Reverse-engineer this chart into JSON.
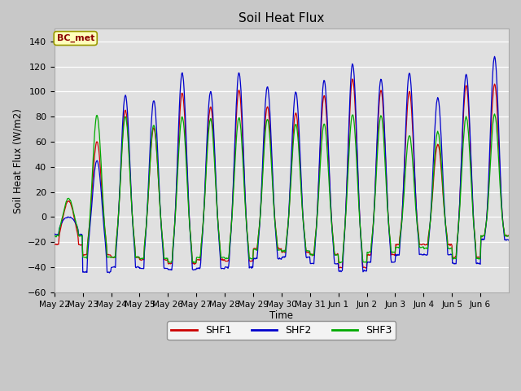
{
  "title": "Soil Heat Flux",
  "ylabel": "Soil Heat Flux (W/m2)",
  "xlabel": "Time",
  "ylim": [
    -60,
    150
  ],
  "yticks": [
    -60,
    -40,
    -20,
    0,
    20,
    40,
    60,
    80,
    100,
    120,
    140
  ],
  "x_labels": [
    "May 22",
    "May 23",
    "May 24",
    "May 25",
    "May 26",
    "May 27",
    "May 28",
    "May 29",
    "May 30",
    "May 31",
    "Jun 1",
    "Jun 2",
    "Jun 3",
    "Jun 4",
    "Jun 5",
    "Jun 6"
  ],
  "colors": {
    "SHF1": "#cc0000",
    "SHF2": "#0000cc",
    "SHF3": "#00aa00"
  },
  "annotation": "BC_met",
  "fig_bg": "#c8c8c8",
  "plot_bg": "#e0e0e0",
  "n_days": 16,
  "peaks_shf2": [
    0,
    45,
    97,
    93,
    115,
    100,
    115,
    104,
    100,
    109,
    122,
    110,
    115,
    95,
    114,
    128
  ],
  "peaks_shf1": [
    13,
    60,
    85,
    71,
    99,
    88,
    101,
    88,
    83,
    97,
    110,
    101,
    100,
    58,
    105,
    106
  ],
  "peaks_shf3": [
    15,
    81,
    80,
    73,
    80,
    78,
    79,
    78,
    74,
    74,
    82,
    81,
    65,
    68,
    80,
    82
  ],
  "nights_shf1": [
    -22,
    -30,
    -32,
    -34,
    -37,
    -34,
    -35,
    -25,
    -28,
    -30,
    -40,
    -30,
    -22,
    -22,
    -32,
    -15
  ],
  "nights_shf2": [
    -14,
    -44,
    -40,
    -41,
    -42,
    -41,
    -40,
    -33,
    -32,
    -37,
    -43,
    -36,
    -30,
    -30,
    -37,
    -18
  ],
  "nights_shf3": [
    -15,
    -32,
    -32,
    -33,
    -36,
    -32,
    -33,
    -26,
    -27,
    -30,
    -36,
    -28,
    -24,
    -25,
    -33,
    -15
  ]
}
